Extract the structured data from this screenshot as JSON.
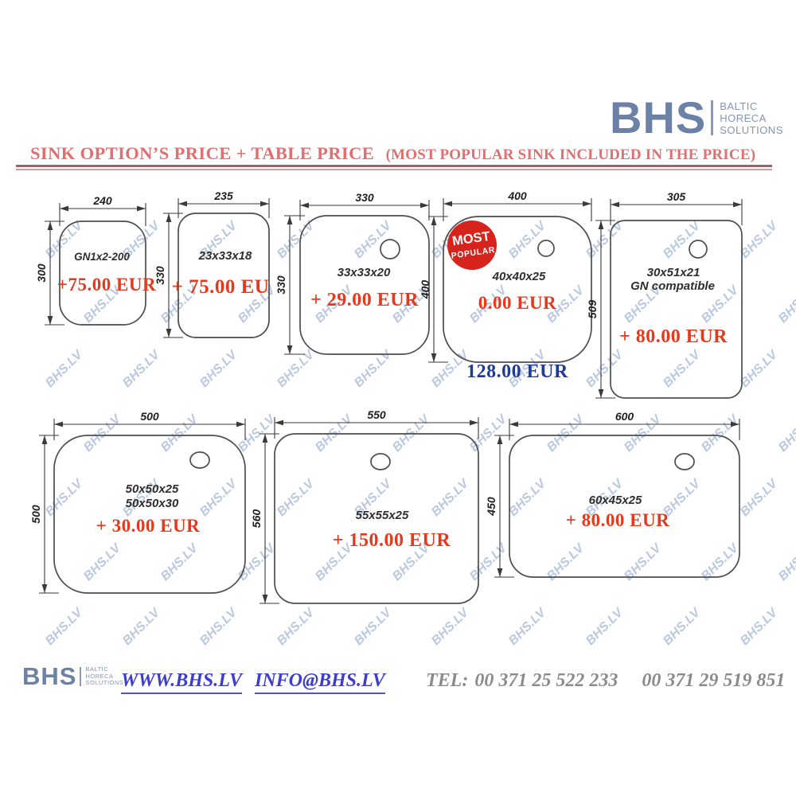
{
  "brand": {
    "name": "BHS",
    "sub": [
      "BALTIC",
      "HORECA",
      "SOLUTIONS"
    ]
  },
  "header": {
    "title_main": "SINK OPTION’S PRICE + TABLE PRICE",
    "title_paren": "(MOST POPULAR SINK INCLUDED IN THE PRICE)"
  },
  "watermark_text": "BHS.LV",
  "badge": {
    "line1": "MOST",
    "line2": "POPULAR"
  },
  "sinks": [
    {
      "name": "GN1x2-200 sink",
      "top_dim": "240",
      "side_dim": "300",
      "labels": [
        "GN1x2-200"
      ],
      "price": "+75.00 EUR"
    },
    {
      "name": "23x33x18 sink",
      "top_dim": "235",
      "side_dim": "330",
      "labels": [
        "23x33x18"
      ],
      "price": "+ 75.00 EU"
    },
    {
      "name": "33x33x20 sink",
      "top_dim": "330",
      "side_dim": "330",
      "labels": [
        "33x33x20"
      ],
      "price": "+ 29.00 EUR"
    },
    {
      "name": "40x40x25 sink",
      "top_dim": "400",
      "side_dim": "400",
      "labels": [
        "40x40x25"
      ],
      "price": "0.00 EUR",
      "price_below": "128.00 EUR",
      "most_popular": true
    },
    {
      "name": "30x51x21 sink",
      "top_dim": "305",
      "side_dim": "509",
      "labels": [
        "30x51x21",
        "GN compatible"
      ],
      "price": "+ 80.00 EUR"
    },
    {
      "name": "50x50 sink",
      "top_dim": "500",
      "side_dim": "500",
      "labels": [
        "50x50x25",
        "50x50x30"
      ],
      "price": "+ 30.00 EUR"
    },
    {
      "name": "55x55x25 sink",
      "top_dim": "550",
      "side_dim": "560",
      "labels": [
        "55x55x25"
      ],
      "price": "+ 150.00 EUR"
    },
    {
      "name": "60x45x25 sink",
      "top_dim": "600",
      "side_dim": "450",
      "labels": [
        "60x45x25"
      ],
      "price": "+ 80.00 EUR"
    }
  ],
  "footer": {
    "website": "WWW.BHS.LV",
    "email": "INFO@BHS.LV",
    "tel_label": "TEL:",
    "phone1": "00 371  25 522 233",
    "phone2": "00 371 29 519 851"
  },
  "colors": {
    "brand_blue": "#6c81a6",
    "title_red": "#e06f6f",
    "price_red": "#e5391d",
    "table_price_blue": "#1c3a96",
    "badge_red": "#d6231c",
    "watermark_blue": "#7692c6",
    "link_blue": "#3d3dcc",
    "phone_gray": "#8b8b8b"
  }
}
